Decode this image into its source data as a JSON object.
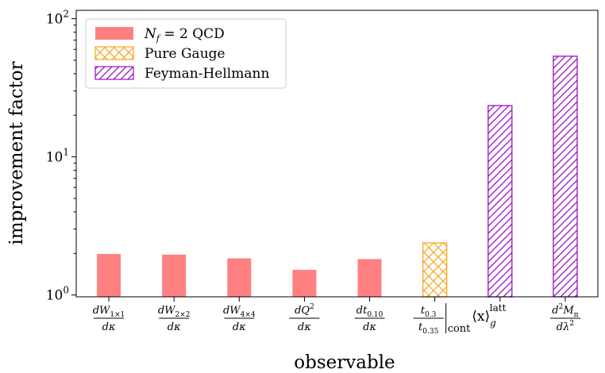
{
  "chart_data": {
    "type": "bar",
    "xlabel": "observable",
    "ylabel": "improvement factor",
    "yscale": "log",
    "ylim": [
      0.97,
      115
    ],
    "yticks": [
      {
        "value": 1,
        "base": "10",
        "exp": "0"
      },
      {
        "value": 10,
        "base": "10",
        "exp": "1"
      },
      {
        "value": 100,
        "base": "10",
        "exp": "2"
      }
    ],
    "categories": [
      {
        "num": "dW",
        "num_sub": "1×1",
        "den": "dκ"
      },
      {
        "num": "dW",
        "num_sub": "2×2",
        "den": "dκ"
      },
      {
        "num": "dW",
        "num_sub": "4×4",
        "den": "dκ"
      },
      {
        "num": "dQ",
        "num_sup": "2",
        "den": "dκ"
      },
      {
        "num": "dt",
        "num_sub": "0.10",
        "den": "dκ"
      },
      {
        "num": "t",
        "num_sub": "0.3",
        "den": "t",
        "den_sub": "0.35",
        "suffix": "cont"
      },
      {
        "bracket": "⟨x⟩",
        "sub": "g",
        "sup": "latt"
      },
      {
        "num": "d",
        "num_sup": "2",
        "num2": "M",
        "num2_sub": "π",
        "den": "dλ",
        "den_sup": "2"
      }
    ],
    "values": [
      1.98,
      1.96,
      1.84,
      1.52,
      1.82,
      2.38,
      23.5,
      53.5
    ],
    "series_index": [
      0,
      0,
      0,
      0,
      0,
      1,
      2,
      2
    ],
    "series": [
      {
        "name": "N",
        "name_sub": "f",
        "name_rest": " = 2 QCD",
        "color": "#ff8080",
        "style": "solid"
      },
      {
        "name": "Pure Gauge",
        "color": "#f5a623",
        "style": "crosshatch"
      },
      {
        "name": "Feyman-Hellmann",
        "color": "#9a10c8",
        "style": "diagonal"
      }
    ],
    "legend_position": "top-left",
    "grid": false
  }
}
